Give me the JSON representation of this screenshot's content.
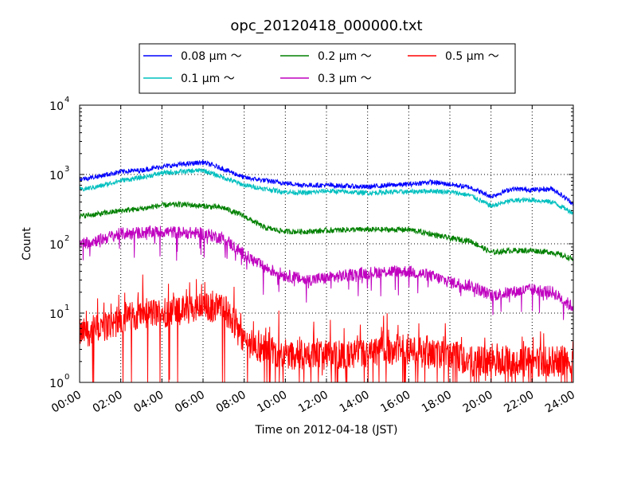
{
  "chart_data": {
    "type": "line",
    "title": "opc_20120418_000000.txt",
    "xlabel": "Time on 2012-04-18 (JST)",
    "ylabel": "Count",
    "y_scale": "log",
    "ylim": [
      1,
      10000
    ],
    "xlim": [
      "00:00",
      "24:00"
    ],
    "grid": true,
    "legend_placement": "top-center",
    "x_ticks": [
      "00:00",
      "02:00",
      "04:00",
      "06:00",
      "08:00",
      "10:00",
      "12:00",
      "14:00",
      "16:00",
      "18:00",
      "20:00",
      "22:00",
      "24:00"
    ],
    "y_ticks": [
      {
        "base": "10",
        "exp": "0"
      },
      {
        "base": "10",
        "exp": "1"
      },
      {
        "base": "10",
        "exp": "2"
      },
      {
        "base": "10",
        "exp": "3"
      },
      {
        "base": "10",
        "exp": "4"
      }
    ],
    "x_hours": [
      0,
      1,
      2,
      3,
      4,
      5,
      6,
      7,
      8,
      9,
      10,
      11,
      12,
      13,
      14,
      15,
      16,
      17,
      18,
      19,
      20,
      21,
      22,
      23,
      24
    ],
    "series": [
      {
        "name": "0.08 μm ～",
        "color": "#0000ff",
        "values": [
          850,
          950,
          1100,
          1150,
          1300,
          1400,
          1500,
          1200,
          900,
          820,
          750,
          700,
          700,
          680,
          660,
          700,
          720,
          780,
          720,
          650,
          480,
          620,
          600,
          620,
          380
        ]
      },
      {
        "name": "0.1 μm ～",
        "color": "#00bfbf",
        "values": [
          600,
          680,
          820,
          900,
          1050,
          1100,
          1150,
          900,
          700,
          620,
          560,
          540,
          580,
          560,
          540,
          560,
          560,
          580,
          560,
          500,
          350,
          420,
          430,
          400,
          280
        ]
      },
      {
        "name": "0.2 μm ～",
        "color": "#008000",
        "values": [
          250,
          270,
          300,
          320,
          360,
          370,
          350,
          330,
          250,
          170,
          150,
          150,
          155,
          160,
          160,
          160,
          160,
          140,
          120,
          110,
          75,
          80,
          80,
          75,
          60
        ]
      },
      {
        "name": "0.3 μm ～",
        "color": "#bf00bf",
        "values": [
          100,
          115,
          140,
          145,
          150,
          145,
          140,
          120,
          70,
          45,
          35,
          30,
          32,
          35,
          38,
          40,
          40,
          35,
          28,
          25,
          18,
          20,
          22,
          20,
          12
        ]
      },
      {
        "name": "0.5 μm ～",
        "color": "#ff0000",
        "values": [
          5,
          6,
          8,
          10,
          10,
          11,
          12,
          12,
          4,
          3,
          2.5,
          2.5,
          2.5,
          2.5,
          2.5,
          3,
          3,
          2.5,
          2.5,
          2,
          2,
          2,
          2,
          2,
          2
        ]
      }
    ]
  }
}
